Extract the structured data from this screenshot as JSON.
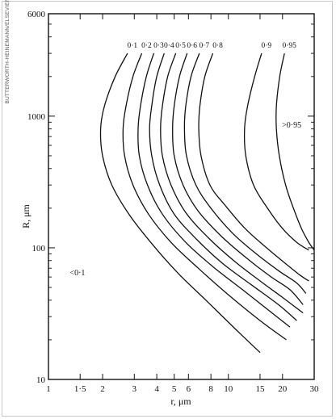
{
  "credit": "BUTTERWORTH-HEINEMANN/ELSEVIER",
  "chart_data": {
    "type": "line",
    "title": "",
    "xlabel": "r, μm",
    "ylabel": "R, μm",
    "xscale": "log",
    "yscale": "log",
    "xlim": [
      1,
      30
    ],
    "ylim": [
      10,
      6000
    ],
    "x_ticks": [
      1,
      1.5,
      2,
      3,
      4,
      5,
      6,
      8,
      10,
      15,
      20,
      30
    ],
    "x_tick_labels": [
      "1",
      "1·5",
      "2",
      "3",
      "4",
      "5",
      "6",
      "8",
      "10",
      "15",
      "20",
      "30"
    ],
    "y_ticks": [
      10,
      100,
      1000,
      6000
    ],
    "y_tick_labels": [
      "10",
      "100",
      "1000",
      "6000"
    ],
    "grid": false,
    "annotations": [
      {
        "text": "<0·1",
        "x": 1.45,
        "y": 62
      },
      {
        "text": ">0·95",
        "x": 22.5,
        "y": 820
      }
    ],
    "series": [
      {
        "name": "0·1",
        "points": [
          [
            2.75,
            3000
          ],
          [
            2.35,
            2000
          ],
          [
            2.05,
            1200
          ],
          [
            1.95,
            800
          ],
          [
            2.0,
            500
          ],
          [
            2.25,
            300
          ],
          [
            2.8,
            180
          ],
          [
            3.7,
            110
          ],
          [
            5.2,
            65
          ],
          [
            7.5,
            40
          ],
          [
            11,
            24
          ],
          [
            15,
            16
          ]
        ]
      },
      {
        "name": "0·2",
        "points": [
          [
            3.3,
            3000
          ],
          [
            2.95,
            2000
          ],
          [
            2.7,
            1200
          ],
          [
            2.6,
            800
          ],
          [
            2.65,
            500
          ],
          [
            2.95,
            300
          ],
          [
            3.6,
            180
          ],
          [
            4.8,
            110
          ],
          [
            6.8,
            70
          ],
          [
            10,
            44
          ],
          [
            15,
            28
          ],
          [
            21,
            20
          ]
        ]
      },
      {
        "name": "0·3",
        "points": [
          [
            3.85,
            3000
          ],
          [
            3.5,
            2000
          ],
          [
            3.25,
            1200
          ],
          [
            3.15,
            800
          ],
          [
            3.2,
            500
          ],
          [
            3.55,
            300
          ],
          [
            4.3,
            180
          ],
          [
            5.8,
            110
          ],
          [
            8.2,
            72
          ],
          [
            12,
            48
          ],
          [
            17,
            33
          ],
          [
            22,
            25
          ]
        ]
      },
      {
        "name": "0·4",
        "points": [
          [
            4.4,
            3000
          ],
          [
            4.0,
            2000
          ],
          [
            3.75,
            1200
          ],
          [
            3.65,
            800
          ],
          [
            3.75,
            500
          ],
          [
            4.15,
            300
          ],
          [
            5.0,
            180
          ],
          [
            6.7,
            115
          ],
          [
            9.3,
            76
          ],
          [
            13.5,
            52
          ],
          [
            19,
            37
          ],
          [
            24,
            28
          ]
        ]
      },
      {
        "name": "0·5",
        "points": [
          [
            5.1,
            3000
          ],
          [
            4.6,
            2000
          ],
          [
            4.3,
            1200
          ],
          [
            4.2,
            800
          ],
          [
            4.3,
            500
          ],
          [
            4.8,
            300
          ],
          [
            5.8,
            185
          ],
          [
            7.7,
            120
          ],
          [
            10.7,
            80
          ],
          [
            15,
            56
          ],
          [
            20,
            42
          ],
          [
            26,
            32
          ]
        ]
      },
      {
        "name": "0·6",
        "points": [
          [
            5.9,
            3000
          ],
          [
            5.35,
            2000
          ],
          [
            5.0,
            1200
          ],
          [
            4.9,
            800
          ],
          [
            5.0,
            500
          ],
          [
            5.6,
            300
          ],
          [
            6.8,
            190
          ],
          [
            9.0,
            125
          ],
          [
            12.3,
            86
          ],
          [
            17,
            61
          ],
          [
            22,
            48
          ],
          [
            26,
            37
          ]
        ]
      },
      {
        "name": "0·7",
        "points": [
          [
            6.9,
            3000
          ],
          [
            6.2,
            2000
          ],
          [
            5.8,
            1200
          ],
          [
            5.7,
            800
          ],
          [
            5.85,
            500
          ],
          [
            6.6,
            300
          ],
          [
            8.0,
            200
          ],
          [
            10.5,
            130
          ],
          [
            14,
            92
          ],
          [
            19,
            67
          ],
          [
            24,
            54
          ],
          [
            27,
            45
          ]
        ]
      },
      {
        "name": "0·8",
        "points": [
          [
            8.2,
            3000
          ],
          [
            7.4,
            2000
          ],
          [
            6.95,
            1200
          ],
          [
            6.85,
            800
          ],
          [
            7.05,
            500
          ],
          [
            7.9,
            300
          ],
          [
            9.6,
            210
          ],
          [
            12.4,
            140
          ],
          [
            16.3,
            100
          ],
          [
            21,
            75
          ],
          [
            25,
            62
          ],
          [
            28,
            56
          ]
        ]
      },
      {
        "name": "0·9",
        "points": [
          [
            15.3,
            3000
          ],
          [
            14.0,
            2000
          ],
          [
            12.8,
            1200
          ],
          [
            12.3,
            800
          ],
          [
            12.5,
            500
          ],
          [
            13.8,
            300
          ],
          [
            16.5,
            200
          ],
          [
            20,
            140
          ],
          [
            24,
            110
          ],
          [
            28,
            96
          ]
        ]
      },
      {
        "name": "0·95",
        "points": [
          [
            20.5,
            3000
          ],
          [
            19.3,
            2000
          ],
          [
            18.5,
            1200
          ],
          [
            18.5,
            800
          ],
          [
            19.2,
            500
          ],
          [
            20.8,
            300
          ],
          [
            23,
            200
          ],
          [
            25.5,
            140
          ],
          [
            28,
            110
          ],
          [
            30,
            96
          ]
        ]
      }
    ]
  }
}
